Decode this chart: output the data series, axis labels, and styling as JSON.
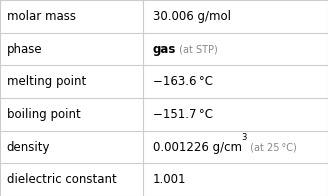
{
  "rows": [
    {
      "label": "molar mass",
      "value_parts": [
        {
          "text": "30.006 g/mol",
          "style": "normal",
          "fontsize": 8.5
        }
      ]
    },
    {
      "label": "phase",
      "value_parts": [
        {
          "text": "gas",
          "style": "bold",
          "fontsize": 8.5
        },
        {
          "text": " (at STP)",
          "style": "small_gray",
          "fontsize": 7.0
        }
      ]
    },
    {
      "label": "melting point",
      "value_parts": [
        {
          "text": "−163.6 °C",
          "style": "normal",
          "fontsize": 8.5
        }
      ]
    },
    {
      "label": "boiling point",
      "value_parts": [
        {
          "text": "−151.7 °C",
          "style": "normal",
          "fontsize": 8.5
        }
      ]
    },
    {
      "label": "density",
      "value_parts": [
        {
          "text": "0.001226 g/cm",
          "style": "normal",
          "fontsize": 8.5
        },
        {
          "text": "3",
          "style": "super",
          "fontsize": 6.0
        },
        {
          "text": " (at 25 °C)",
          "style": "small_gray",
          "fontsize": 7.0
        }
      ]
    },
    {
      "label": "dielectric constant",
      "value_parts": [
        {
          "text": "1.001",
          "style": "normal",
          "fontsize": 8.5
        }
      ]
    }
  ],
  "col_split": 0.435,
  "background_color": "#ffffff",
  "label_fontsize": 8.5,
  "line_color": "#cccccc",
  "text_color": "#000000",
  "gray_color": "#888888",
  "label_font": "DejaVu Sans"
}
